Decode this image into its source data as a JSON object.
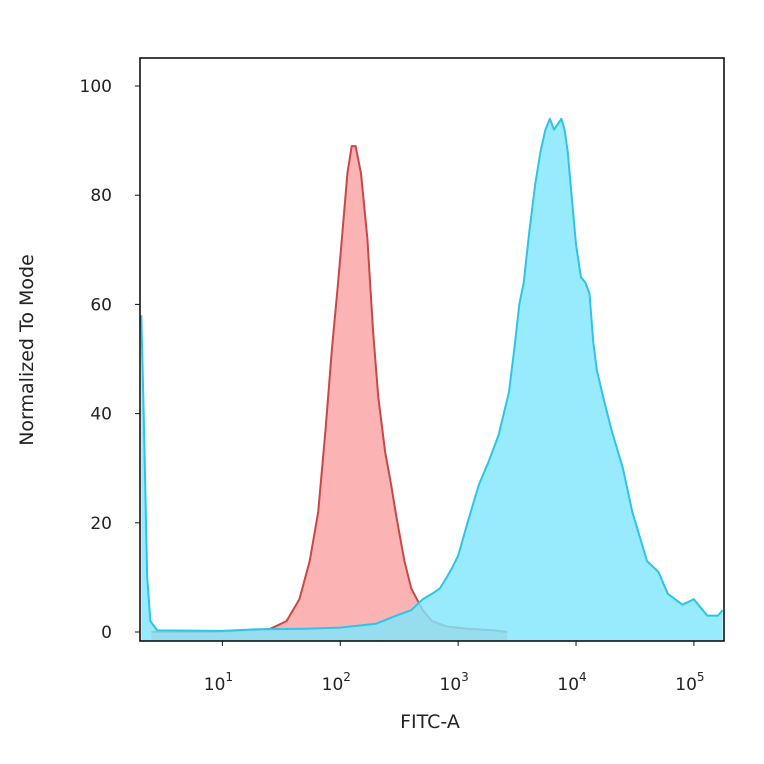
{
  "chart_data": {
    "type": "area",
    "xlabel": "FITC-A",
    "ylabel": "Normalized To Mode",
    "x_scale": "log",
    "xlim": [
      2,
      180000
    ],
    "ylim": [
      0,
      100
    ],
    "grid": false,
    "legend": "none",
    "x_ticks": [
      {
        "value": 10,
        "base": "10",
        "exp": "1"
      },
      {
        "value": 100,
        "base": "10",
        "exp": "2"
      },
      {
        "value": 1000,
        "base": "10",
        "exp": "3"
      },
      {
        "value": 10000,
        "base": "10",
        "exp": "4"
      },
      {
        "value": 100000,
        "base": "10",
        "exp": "5"
      }
    ],
    "y_ticks": [
      {
        "value": 0,
        "label": "0"
      },
      {
        "value": 20,
        "label": "20"
      },
      {
        "value": 40,
        "label": "40"
      },
      {
        "value": 60,
        "label": "60"
      },
      {
        "value": 80,
        "label": "80"
      },
      {
        "value": 100,
        "label": "100"
      }
    ],
    "series": [
      {
        "fill": "#fba2a4",
        "stroke": "#c84848",
        "points": [
          [
            2.5,
            0
          ],
          [
            8,
            0
          ],
          [
            15,
            0.3
          ],
          [
            25,
            0.5
          ],
          [
            35,
            2
          ],
          [
            45,
            6
          ],
          [
            55,
            13
          ],
          [
            65,
            22
          ],
          [
            75,
            37
          ],
          [
            85,
            52
          ],
          [
            95,
            63
          ],
          [
            105,
            74
          ],
          [
            115,
            84
          ],
          [
            125,
            89
          ],
          [
            135,
            89
          ],
          [
            150,
            84
          ],
          [
            170,
            72
          ],
          [
            190,
            55
          ],
          [
            210,
            43
          ],
          [
            240,
            33
          ],
          [
            270,
            27
          ],
          [
            300,
            21
          ],
          [
            350,
            13
          ],
          [
            400,
            8
          ],
          [
            500,
            4
          ],
          [
            600,
            2
          ],
          [
            800,
            1
          ],
          [
            1200,
            0.6
          ],
          [
            2000,
            0.3
          ],
          [
            2600,
            0
          ]
        ]
      },
      {
        "fill": "#80e6fc",
        "stroke": "#2ec4e8",
        "points": [
          [
            2.05,
            58
          ],
          [
            2.15,
            40
          ],
          [
            2.3,
            10
          ],
          [
            2.45,
            2
          ],
          [
            2.8,
            0.3
          ],
          [
            10,
            0.2
          ],
          [
            20,
            0.5
          ],
          [
            50,
            0.6
          ],
          [
            100,
            0.8
          ],
          [
            200,
            1.5
          ],
          [
            300,
            3
          ],
          [
            400,
            4
          ],
          [
            500,
            6
          ],
          [
            600,
            7
          ],
          [
            700,
            8
          ],
          [
            800,
            10
          ],
          [
            900,
            12
          ],
          [
            1000,
            14
          ],
          [
            1200,
            20
          ],
          [
            1500,
            27
          ],
          [
            1800,
            31
          ],
          [
            2200,
            36
          ],
          [
            2700,
            44
          ],
          [
            3000,
            52
          ],
          [
            3300,
            60
          ],
          [
            3600,
            64
          ],
          [
            4000,
            73
          ],
          [
            4500,
            82
          ],
          [
            5000,
            88
          ],
          [
            5500,
            92
          ],
          [
            6000,
            94
          ],
          [
            6500,
            92
          ],
          [
            7000,
            93
          ],
          [
            7500,
            94
          ],
          [
            8000,
            92
          ],
          [
            8500,
            88
          ],
          [
            9000,
            82
          ],
          [
            10000,
            71
          ],
          [
            11000,
            65
          ],
          [
            12000,
            64
          ],
          [
            13000,
            62
          ],
          [
            14000,
            53
          ],
          [
            15000,
            48
          ],
          [
            17000,
            43
          ],
          [
            20000,
            37
          ],
          [
            25000,
            30
          ],
          [
            30000,
            22
          ],
          [
            40000,
            13
          ],
          [
            50000,
            11
          ],
          [
            60000,
            7
          ],
          [
            80000,
            5
          ],
          [
            100000,
            6
          ],
          [
            130000,
            3
          ],
          [
            160000,
            3
          ],
          [
            175000,
            4
          ]
        ]
      }
    ]
  }
}
